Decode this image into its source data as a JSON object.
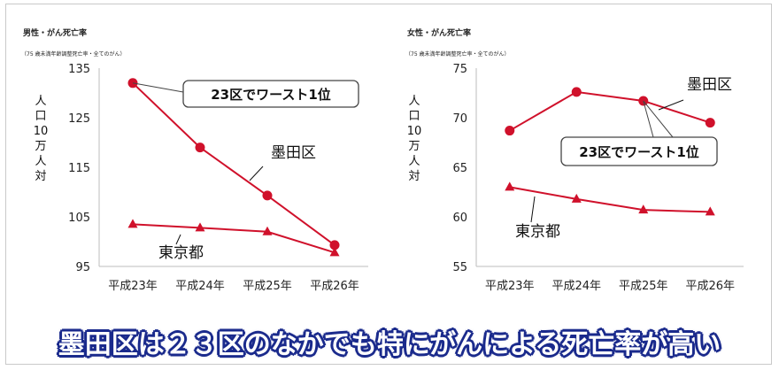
{
  "caption": "墨田区は２３区のなかでも特にがんによる死亡率が高い",
  "colors": {
    "series": "#d0112b",
    "caption_outline": "#1a2a8c",
    "axis": "#bdbdbd"
  },
  "chart_data": [
    {
      "type": "line",
      "title": "男性・がん死亡率",
      "subtitle": "（75 歳未満年齢調整死亡率・全てのがん）",
      "ylabel": "人口10万人対",
      "categories": [
        "平成23年",
        "平成24年",
        "平成25年",
        "平成26年"
      ],
      "ylim": [
        95,
        135
      ],
      "yticks": [
        95,
        105,
        115,
        125,
        135
      ],
      "grid": false,
      "series": [
        {
          "name": "墨田区",
          "marker": "circle",
          "values": [
            132,
            119,
            109.3,
            99.3
          ]
        },
        {
          "name": "東京都",
          "marker": "triangle",
          "values": [
            103.5,
            102.8,
            102,
            97.8
          ]
        }
      ],
      "annotation": "23区でワースト1位"
    },
    {
      "type": "line",
      "title": "女性・がん死亡率",
      "subtitle": "（75 歳未満年齢調整死亡率・全てのがん）",
      "ylabel": "人口10万人対",
      "categories": [
        "平成23年",
        "平成24年",
        "平成25年",
        "平成26年"
      ],
      "ylim": [
        55,
        75
      ],
      "yticks": [
        55,
        60,
        65,
        70,
        75
      ],
      "grid": false,
      "series": [
        {
          "name": "墨田区",
          "marker": "circle",
          "values": [
            68.7,
            72.6,
            71.7,
            69.5
          ]
        },
        {
          "name": "東京都",
          "marker": "triangle",
          "values": [
            63,
            61.8,
            60.7,
            60.5
          ]
        }
      ],
      "annotation": "23区でワースト1位"
    }
  ]
}
